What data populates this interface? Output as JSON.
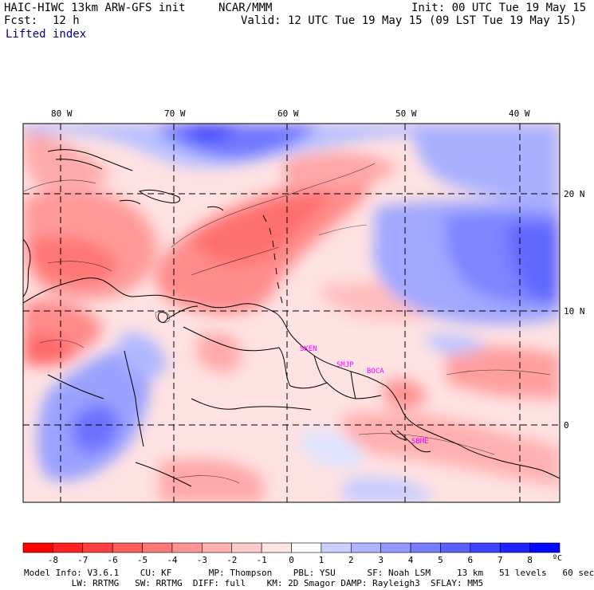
{
  "header": {
    "model_title": "HAIC-HIWC 13km ARW-GFS init",
    "org": "NCAR/MMM",
    "init": "Init: 00 UTC Tue 19 May 15",
    "fcst_label": "Fcst:",
    "fcst_value": "12 h",
    "valid": "Valid: 12 UTC Tue 19 May 15 (09 LST Tue 19 May 15)",
    "field": "Lifted index"
  },
  "map": {
    "lon_labels": [
      "80 W",
      "70 W",
      "60 W",
      "50 W",
      "40 W"
    ],
    "lon_values": [
      -80,
      -70,
      -60,
      -50,
      -40
    ],
    "lat_labels": [
      "20 N",
      "10 N",
      "0"
    ],
    "lat_values": [
      20,
      10,
      0
    ],
    "extent": {
      "lon_min": -83,
      "lon_max": -35.5,
      "lat_min": -6.5,
      "lat_max": 25.5
    },
    "station_labels": [
      "SKEN",
      "SMJP",
      "BOCA",
      "SBME"
    ],
    "station_color": "#ff00ff",
    "region": "Caribbean and northern South America"
  },
  "colorbar": {
    "levels": [
      "-8",
      "-7",
      "-6",
      "-5",
      "-4",
      "-3",
      "-2",
      "-1",
      "0",
      "1",
      "2",
      "3",
      "4",
      "5",
      "6",
      "7",
      "8"
    ],
    "unit": "ºC",
    "colors": [
      "#ff0000",
      "#ff2020",
      "#ff4040",
      "#ff5c5c",
      "#ff7878",
      "#ff9494",
      "#ffb0b0",
      "#ffcccc",
      "#ffe6e6",
      "#ffffff",
      "#ccd0ff",
      "#b0b4ff",
      "#9498ff",
      "#787cff",
      "#5c60ff",
      "#4044ff",
      "#2024ff",
      "#0008ff"
    ]
  },
  "footer": {
    "line1": "Model Info: V3.6.1    CU: KF       MP: Thompson    PBL: YSU      SF: Noah LSM     13 km   51 levels   60 sec",
    "line2": "         LW: RRTMG   SW: RRTMG  DIFF: full    KM: 2D Smagor DAMP: Rayleigh3  SFLAY: MM5"
  }
}
